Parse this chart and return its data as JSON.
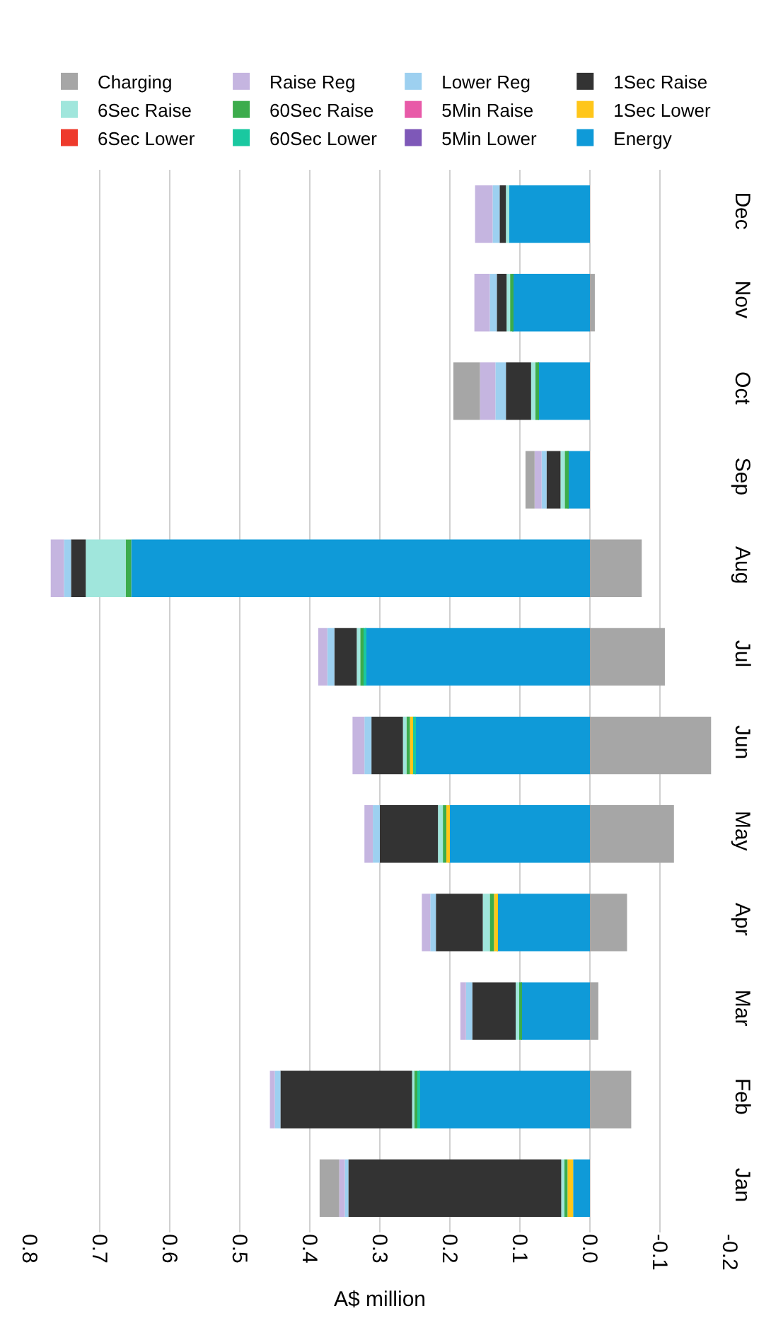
{
  "chart_data": {
    "type": "bar",
    "orientation": "horizontal",
    "stacked": true,
    "xlabel": "A$ million",
    "categories": [
      "Dec",
      "Nov",
      "Oct",
      "Sep",
      "Aug",
      "Jul",
      "Jun",
      "May",
      "Apr",
      "Mar",
      "Feb",
      "Jan"
    ],
    "series": [
      {
        "name": "Energy",
        "color": "#0f9ad8",
        "values": [
          0.116,
          0.111,
          0.074,
          0.032,
          0.655,
          0.321,
          0.25,
          0.202,
          0.133,
          0.098,
          0.244,
          0.024
        ]
      },
      {
        "name": "5Min Lower",
        "color": "#7e58b8",
        "values": [
          0,
          0,
          0,
          0,
          0,
          0,
          0,
          0,
          0,
          0,
          0,
          0
        ]
      },
      {
        "name": "60Sec Lower",
        "color": "#1ac8a0",
        "values": [
          0,
          0,
          0,
          0,
          0,
          0.003,
          0.003,
          0,
          0,
          0,
          0.003,
          0
        ]
      },
      {
        "name": "6Sec Lower",
        "color": "#ee3a2c",
        "values": [
          0,
          0,
          0,
          0,
          0,
          0,
          0,
          0,
          0,
          null,
          0,
          0
        ]
      },
      {
        "name": "1Sec Lower",
        "color": "#ffc61a",
        "values": [
          0,
          0,
          0,
          0,
          0,
          0,
          0.004,
          0.003,
          0.004,
          0,
          null,
          0.008
        ]
      },
      {
        "name": "5Min Raise",
        "color": "#e85aa8",
        "values": [
          0,
          0,
          0,
          0,
          0,
          0,
          0,
          0,
          0,
          0,
          0,
          0
        ]
      },
      {
        "name": "60Sec Raise",
        "color": "#3cac4c",
        "values": [
          null,
          0.003,
          0.004,
          0.004,
          0.008,
          0.004,
          0.005,
          0.005,
          0.006,
          0.003,
          0.004,
          0.005
        ]
      },
      {
        "name": "6Sec Raise",
        "color": "#a0e6dc",
        "values": [
          0.004,
          0.005,
          0.006,
          0.006,
          0.057,
          0.005,
          0.005,
          0.007,
          0.01,
          0.005,
          0.003,
          0.004
        ]
      },
      {
        "name": "1Sec Raise",
        "color": "#333333",
        "values": [
          0.009,
          0.014,
          0.036,
          0.02,
          0.021,
          0.032,
          0.045,
          0.083,
          0.067,
          0.062,
          0.188,
          0.304
        ]
      },
      {
        "name": "Lower Reg",
        "color": "#9dd0f0",
        "values": [
          0.01,
          0.01,
          0.015,
          0.007,
          0.01,
          0.01,
          0.01,
          0.01,
          0.008,
          0.009,
          0.008,
          0.005
        ]
      },
      {
        "name": "Raise Reg",
        "color": "#c5b5e0",
        "values": [
          0.025,
          0.022,
          0.022,
          0.01,
          0.019,
          0.013,
          0.017,
          0.012,
          0.012,
          0.008,
          0.007,
          0.008
        ]
      },
      {
        "name": "Charging",
        "color": "#a6a6a6",
        "values": [
          null,
          -0.007,
          0.038,
          0.013,
          -0.074,
          -0.107,
          -0.173,
          -0.12,
          -0.053,
          -0.012,
          -0.059,
          0.028
        ]
      }
    ],
    "xlim": [
      0.8,
      -0.2
    ],
    "xticks": [
      {
        "value": 0.8,
        "label": "0.8"
      },
      {
        "value": 0.7,
        "label": "0.7"
      },
      {
        "value": 0.6,
        "label": "0.6"
      },
      {
        "value": 0.5,
        "label": "0.5"
      },
      {
        "value": 0.4,
        "label": "0.4"
      },
      {
        "value": 0.3,
        "label": "0.3"
      },
      {
        "value": 0.2,
        "label": "0.2"
      },
      {
        "value": 0.1,
        "label": "0.1"
      },
      {
        "value": 0,
        "label": "0.0"
      },
      {
        "value": -0.1,
        "label": "-0.1"
      },
      {
        "value": -0.2,
        "label": "-0.2"
      }
    ],
    "grid": "x",
    "legend": "top"
  }
}
